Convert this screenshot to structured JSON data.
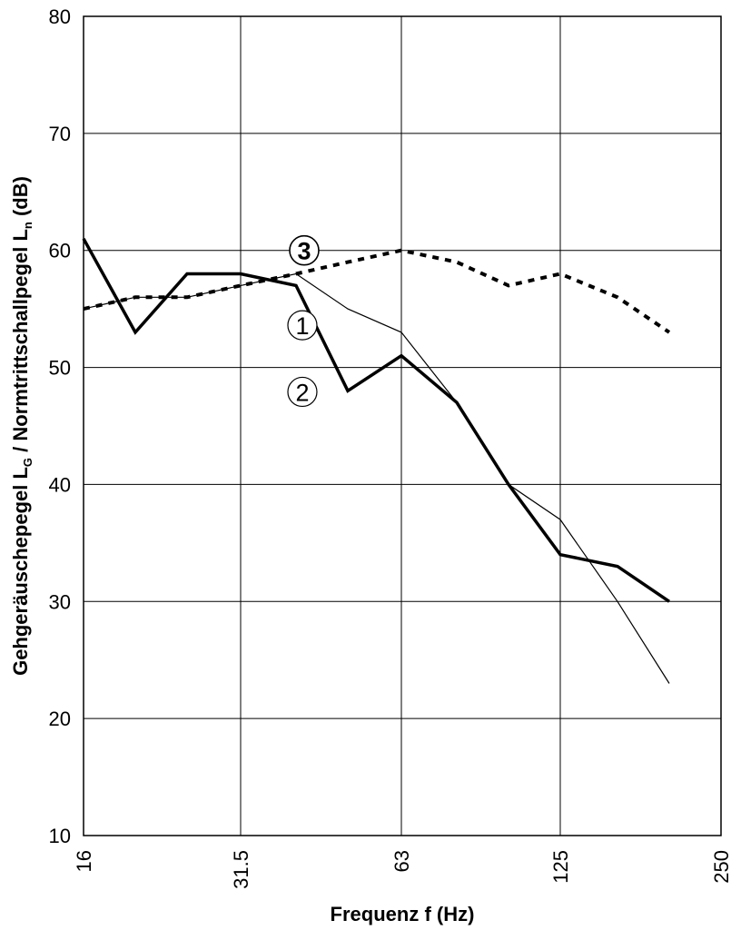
{
  "chart_data": {
    "type": "line",
    "xlabel": "Frequenz f (Hz)",
    "ylabel_main": "Gehgeräuschepegel L",
    "ylabel_sub1": "G",
    "ylabel_mid": " / Normtrittschallpegel L",
    "ylabel_sub2": "n",
    "ylabel_end": " (dB)",
    "x_scale": "log",
    "xlim": [
      16,
      250
    ],
    "ylim": [
      10,
      80
    ],
    "y_ticks": [
      10,
      20,
      30,
      40,
      50,
      60,
      70,
      80
    ],
    "x_ticks": [
      "16",
      "31.5",
      "63",
      "125",
      "250"
    ],
    "grid": true,
    "series": [
      {
        "name": "1",
        "style": "thin",
        "color": "#000000",
        "x": [
          16,
          20,
          25,
          31.5,
          40,
          50,
          63,
          80,
          100,
          125,
          160,
          200
        ],
        "values": [
          55,
          56,
          56,
          57,
          58,
          55,
          53,
          47,
          40,
          37,
          30,
          23
        ]
      },
      {
        "name": "2",
        "style": "thick",
        "color": "#000000",
        "x": [
          16,
          20,
          25,
          31.5,
          40,
          50,
          63,
          80,
          100,
          125,
          160,
          200
        ],
        "values": [
          61,
          53,
          58,
          58,
          57,
          48,
          51,
          47,
          40,
          34,
          33,
          30
        ]
      },
      {
        "name": "3",
        "style": "dashed",
        "color": "#000000",
        "x": [
          16,
          20,
          25,
          31.5,
          40,
          50,
          63,
          80,
          100,
          125,
          160,
          200
        ],
        "values": [
          55,
          56,
          56,
          57,
          58,
          59,
          60,
          59,
          57,
          58,
          56,
          53
        ]
      }
    ],
    "annotations": [
      {
        "text": "1",
        "bold": false,
        "at_x": 50,
        "at_y": 55
      },
      {
        "text": "2",
        "bold": false,
        "at_x": 50,
        "at_y": 49
      },
      {
        "text": "3",
        "bold": true,
        "at_x": 50,
        "at_y": 60
      }
    ]
  }
}
